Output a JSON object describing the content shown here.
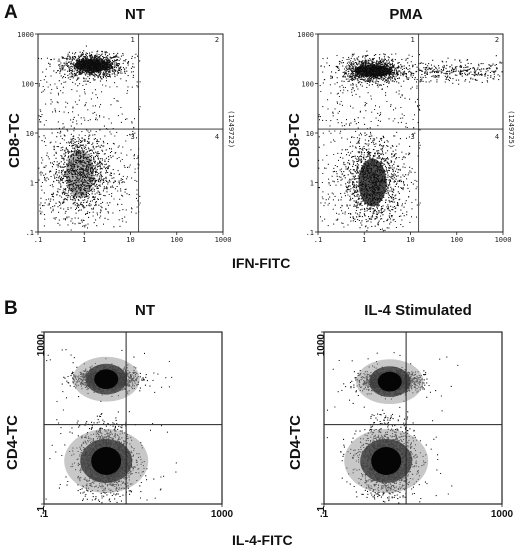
{
  "panelA": {
    "letter": "A",
    "xlabel": "IFN-FITC",
    "plots": [
      {
        "title": "NT",
        "ylabel": "CD8-TC",
        "xticks": [
          ".1",
          "1",
          "10",
          "100",
          "1000"
        ],
        "yticks": [
          "1000",
          "100",
          "10",
          "1",
          ".1"
        ],
        "quadrant_labels": [
          "1",
          "2",
          "3",
          "4"
        ],
        "side_text": "(1249722)"
      },
      {
        "title": "PMA",
        "ylabel": "CD8-TC",
        "xticks": [
          ".1",
          "1",
          "10",
          "100",
          "1000"
        ],
        "yticks": [
          "1000",
          "100",
          "10",
          "1",
          ".1"
        ],
        "quadrant_labels": [
          "1",
          "2",
          "3",
          "4"
        ],
        "side_text": "(1249725)"
      }
    ]
  },
  "panelB": {
    "letter": "B",
    "xlabel": "IL-4-FITC",
    "plots": [
      {
        "title": "NT",
        "ylabel": "CD4-TC",
        "xticks": [
          ".1",
          "1000"
        ],
        "yticks": [
          "1000",
          ".1"
        ]
      },
      {
        "title": "IL-4 Stimulated",
        "ylabel": "CD4-TC",
        "xticks": [
          ".1",
          "1000"
        ],
        "yticks": [
          "1000",
          ".1"
        ]
      }
    ]
  },
  "chart_data": [
    {
      "type": "scatter",
      "title": "NT",
      "xlabel": "IFN-FITC",
      "ylabel": "CD8-TC",
      "log_scale": true,
      "xlim": [
        0.1,
        1000
      ],
      "ylim": [
        0.1,
        1000
      ],
      "quadrant_gate": {
        "x": 15,
        "y": 12
      },
      "populations": [
        {
          "x": 1.5,
          "y": 230,
          "density": "high"
        },
        {
          "x": 0.8,
          "y": 1.5,
          "density": "high"
        }
      ]
    },
    {
      "type": "scatter",
      "title": "PMA",
      "xlabel": "IFN-FITC",
      "ylabel": "CD8-TC",
      "log_scale": true,
      "xlim": [
        0.1,
        1000
      ],
      "ylim": [
        0.1,
        1000
      ],
      "quadrant_gate": {
        "x": 15,
        "y": 12
      },
      "populations": [
        {
          "x": 1.5,
          "y": 180,
          "density": "high"
        },
        {
          "x": 1.5,
          "y": 1,
          "density": "high"
        },
        {
          "x": 100,
          "y": 170,
          "density": "low"
        }
      ]
    },
    {
      "type": "scatter",
      "title": "NT",
      "xlabel": "IL-4-FITC",
      "ylabel": "CD4-TC",
      "log_scale": true,
      "xlim": [
        0.1,
        1000
      ],
      "ylim": [
        0.1,
        1000
      ],
      "quadrant_gate": {
        "x": 7,
        "y": 7
      },
      "populations": [
        {
          "x": 2.5,
          "y": 80,
          "density": "high"
        },
        {
          "x": 2.5,
          "y": 1,
          "density": "high"
        }
      ]
    },
    {
      "type": "scatter",
      "title": "IL-4 Stimulated",
      "xlabel": "IL-4-FITC",
      "ylabel": "CD4-TC",
      "log_scale": true,
      "xlim": [
        0.1,
        1000
      ],
      "ylim": [
        0.1,
        1000
      ],
      "quadrant_gate": {
        "x": 7,
        "y": 7
      },
      "populations": [
        {
          "x": 3,
          "y": 70,
          "density": "high"
        },
        {
          "x": 2.5,
          "y": 1,
          "density": "high"
        }
      ]
    }
  ]
}
